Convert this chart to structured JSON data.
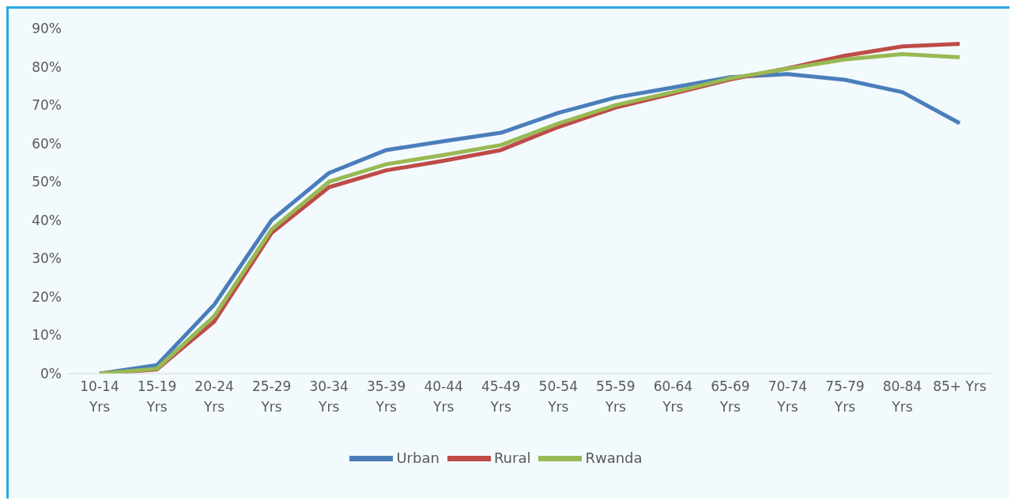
{
  "chart_data": {
    "type": "line",
    "categories": [
      "10-14 Yrs",
      "15-19 Yrs",
      "20-24 Yrs",
      "25-29 Yrs",
      "30-34 Yrs",
      "35-39 Yrs",
      "40-44 Yrs",
      "45-49 Yrs",
      "50-54 Yrs",
      "55-59 Yrs",
      "60-64 Yrs",
      "65-69 Yrs",
      "70-74 Yrs",
      "75-79 Yrs",
      "80-84 Yrs",
      "85+ Yrs"
    ],
    "series": [
      {
        "name": "Urban",
        "color": "#4a7ebb",
        "values": [
          0,
          2.2,
          18,
          40,
          52.3,
          58.3,
          60.6,
          62.8,
          68,
          72,
          74.6,
          77.3,
          78.1,
          76.6,
          73.4,
          65.3
        ]
      },
      {
        "name": "Rural",
        "color": "#be4b48",
        "values": [
          0,
          1.1,
          13.6,
          36.7,
          48.6,
          53,
          55.5,
          58.3,
          64.3,
          69.4,
          73,
          76.7,
          79.6,
          82.9,
          85.3,
          86
        ]
      },
      {
        "name": "Rwanda",
        "color": "#98b954",
        "values": [
          0,
          1.3,
          15,
          37.6,
          50,
          54.6,
          57,
          59.6,
          65.2,
          70,
          73.4,
          77,
          79.5,
          81.9,
          83.3,
          82.5
        ]
      }
    ],
    "ylim": [
      0,
      90
    ],
    "yticks": [
      {
        "value": 0,
        "label": "0%"
      },
      {
        "value": 10,
        "label": "10%"
      },
      {
        "value": 20,
        "label": "20%"
      },
      {
        "value": 30,
        "label": "30%"
      },
      {
        "value": 40,
        "label": "40%"
      },
      {
        "value": 50,
        "label": "50%"
      },
      {
        "value": 60,
        "label": "60%"
      },
      {
        "value": 70,
        "label": "70%"
      },
      {
        "value": 80,
        "label": "80%"
      },
      {
        "value": 90,
        "label": "90%"
      }
    ],
    "grid": false,
    "legend": "bottom",
    "marker": "none",
    "line_style": "solid"
  }
}
